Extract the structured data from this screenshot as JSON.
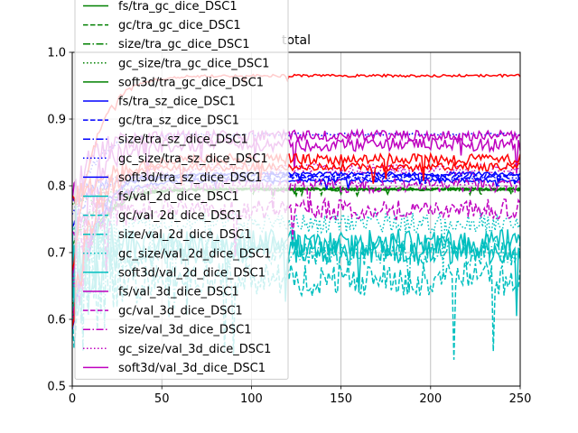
{
  "chart_data": {
    "type": "line",
    "title": "total",
    "xlabel": "",
    "ylabel": "",
    "xlim": [
      0,
      250
    ],
    "ylim": [
      0.5,
      1.0
    ],
    "x_ticks": [
      0,
      50,
      100,
      150,
      200,
      250
    ],
    "y_ticks": [
      0.5,
      0.6,
      0.7,
      0.8,
      0.9,
      1.0
    ],
    "grid": true,
    "legend_position": "upper-left",
    "series": [
      {
        "name": "fs/tra_gc_dice_DSC1",
        "color": "#008000",
        "style": "solid",
        "base": 0.795,
        "noise": 0.002
      },
      {
        "name": "gc/tra_gc_dice_DSC1",
        "color": "#008000",
        "style": "dashed",
        "base": 0.795,
        "noise": 0.002
      },
      {
        "name": "size/tra_gc_dice_DSC1",
        "color": "#008000",
        "style": "dashdot",
        "base": 0.794,
        "noise": 0.002
      },
      {
        "name": "gc_size/tra_gc_dice_DSC1",
        "color": "#008000",
        "style": "dotted",
        "base": 0.796,
        "noise": 0.002
      },
      {
        "name": "soft3d/tra_gc_dice_DSC1",
        "color": "#008000",
        "style": "solid",
        "base": 0.795,
        "noise": 0.002
      },
      {
        "name": "fs/tra_sz_dice_DSC1",
        "color": "#0000ff",
        "style": "solid",
        "base": 0.818,
        "noise": 0.003
      },
      {
        "name": "gc/tra_sz_dice_DSC1",
        "color": "#0000ff",
        "style": "dashed",
        "base": 0.815,
        "noise": 0.003
      },
      {
        "name": "size/tra_sz_dice_DSC1",
        "color": "#0000ff",
        "style": "dashdot",
        "base": 0.812,
        "noise": 0.003
      },
      {
        "name": "gc_size/tra_sz_dice_DSC1",
        "color": "#0000ff",
        "style": "dotted",
        "base": 0.877,
        "noise": 0.002
      },
      {
        "name": "soft3d/tra_sz_dice_DSC1",
        "color": "#0000ff",
        "style": "solid",
        "base": 0.808,
        "noise": 0.003
      },
      {
        "name": "fs/val_2d_dice_DSC1",
        "color": "#00bfbf",
        "style": "solid",
        "base": 0.705,
        "noise": 0.022
      },
      {
        "name": "gc/val_2d_dice_DSC1",
        "color": "#00bfbf",
        "style": "dashed",
        "base": 0.66,
        "noise": 0.025
      },
      {
        "name": "size/val_2d_dice_DSC1",
        "color": "#00bfbf",
        "style": "dashdot",
        "base": 0.7,
        "noise": 0.02
      },
      {
        "name": "gc_size/val_2d_dice_DSC1",
        "color": "#00bfbf",
        "style": "dotted",
        "base": 0.745,
        "noise": 0.015
      },
      {
        "name": "soft3d/val_2d_dice_DSC1",
        "color": "#00bfbf",
        "style": "solid",
        "base": 0.715,
        "noise": 0.02
      },
      {
        "name": "fs/val_3d_dice_DSC1",
        "color": "#bf00bf",
        "style": "solid",
        "base": 0.875,
        "noise": 0.008
      },
      {
        "name": "gc/val_3d_dice_DSC1",
        "color": "#bf00bf",
        "style": "dashed",
        "base": 0.765,
        "noise": 0.015
      },
      {
        "name": "size/val_3d_dice_DSC1",
        "color": "#bf00bf",
        "style": "dashdot",
        "base": 0.8,
        "noise": 0.01
      },
      {
        "name": "gc_size/val_3d_dice_DSC1",
        "color": "#bf00bf",
        "style": "dotted",
        "base": 0.825,
        "noise": 0.008
      },
      {
        "name": "soft3d/val_3d_dice_DSC1",
        "color": "#bf00bf",
        "style": "solid",
        "base": 0.862,
        "noise": 0.01
      },
      {
        "name": "",
        "color": "#ff0000",
        "style": "solid",
        "base": 0.965,
        "noise": 0.002
      },
      {
        "name": "",
        "color": "#ff0000",
        "style": "solid",
        "base": 0.84,
        "noise": 0.008
      },
      {
        "name": "",
        "color": "#ff0000",
        "style": "solid",
        "base": 0.828,
        "noise": 0.006
      }
    ]
  }
}
